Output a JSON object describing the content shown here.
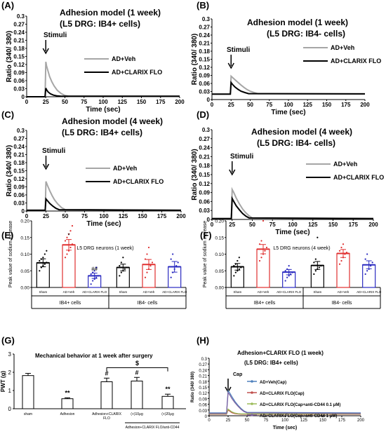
{
  "figure": {
    "panels": [
      {
        "id": "A",
        "letter": "(A)",
        "title": "Adhesion model (1 week)",
        "subtitle": "(L5 DRG: IB4+ cells)",
        "stimulus_label": "Stimuli",
        "ylabel": "Ratio (340/ 380)",
        "xlabel": "Time (sec)"
      },
      {
        "id": "B",
        "letter": "(B)",
        "title": "Adhesion model (1 week)",
        "subtitle": "(L5 DRG: IB4- cells)",
        "stimulus_label": "Stimuli",
        "ylabel": "Ratio (340/ 380)",
        "xlabel": "Time (sec)"
      },
      {
        "id": "C",
        "letter": "(C)",
        "title": "Adhesion model (4 week)",
        "subtitle": "(L5 DRG: IB4+ cells)",
        "stimulus_label": "Stimuli",
        "ylabel": "Ratio (340/ 380)",
        "xlabel": "Time (sec)"
      },
      {
        "id": "D",
        "letter": "(D)",
        "title": "Adhesion model (4 week)",
        "subtitle": "(L5 DRG: IB4- cells)",
        "stimulus_label": "Stimuli",
        "ylabel": "Ratio (340/ 380)",
        "xlabel": "Time (sec)"
      },
      {
        "id": "E",
        "letter": "(E)",
        "title": "L5 DRG neurons (1 week)",
        "ylabel": "Peak value of sodium increase",
        "group_labels": [
          "IB4+ cells",
          "IB4- cells"
        ]
      },
      {
        "id": "F",
        "letter": "(F)",
        "title": "L5 DRG neurons (4 week)",
        "ylabel": "Peak value of sodium increase",
        "group_labels": [
          "IB4+ cells",
          "IB4- cells"
        ]
      },
      {
        "id": "G",
        "letter": "(G)",
        "title": "Mechanical behavior at 1 week after surgery",
        "ylabel": "PWT (g)",
        "bracket_label": "$",
        "subgroup_label": "Adhesion+CLARIX FLO/anti-CD44"
      },
      {
        "id": "H",
        "letter": "(H)",
        "title": "Adhesion+CLARIX FLO (1 week)",
        "subtitle": "(L5 DRG: IB4+ cells)",
        "stimulus_label": "Cap",
        "ylabel": "Ratio (340/ 380)",
        "xlabel": "Time (sec)"
      }
    ]
  },
  "chart_data": [
    {
      "type": "line",
      "panel": "A",
      "title": "Adhesion model (1 week)",
      "subtitle": "(L5 DRG: IB4+ cells)",
      "xlabel": "Time (sec)",
      "ylabel": "Ratio (340/ 380)",
      "xlim": [
        0,
        200
      ],
      "ylim": [
        0,
        0.3
      ],
      "xticks": [
        0,
        25,
        50,
        75,
        100,
        125,
        150,
        175,
        200
      ],
      "yticks": [
        0,
        0.03,
        0.06,
        0.09,
        0.12,
        0.15,
        0.18,
        0.21,
        0.24,
        0.27,
        0.3
      ],
      "legend": "right",
      "series": [
        {
          "name": "AD+Veh",
          "color": "#a6a6a6",
          "x": [
            0,
            24,
            25,
            26,
            28,
            30,
            33,
            36,
            40,
            45,
            50,
            55,
            200
          ],
          "y": [
            0,
            0,
            0.13,
            0.115,
            0.095,
            0.075,
            0.055,
            0.04,
            0.024,
            0.012,
            0.005,
            0.002,
            0.002
          ]
        },
        {
          "name": "AD+CLARIX FLO",
          "color": "#000000",
          "x": [
            0,
            24,
            25,
            26,
            28,
            31,
            35,
            40,
            45,
            200
          ],
          "y": [
            0,
            0,
            0.032,
            0.026,
            0.018,
            0.011,
            0.006,
            0.003,
            0.002,
            0.002
          ]
        }
      ]
    },
    {
      "type": "line",
      "panel": "B",
      "title": "Adhesion model (1 week)",
      "subtitle": "(L5 DRG: IB4- cells)",
      "xlabel": "Time (sec)",
      "ylabel": "Ratio (340/ 380)",
      "xlim": [
        0,
        200
      ],
      "ylim": [
        0,
        0.3
      ],
      "xticks": [
        0,
        25,
        50,
        75,
        100,
        125,
        150,
        175,
        200
      ],
      "yticks": [
        0,
        0.03,
        0.06,
        0.09,
        0.12,
        0.15,
        0.18,
        0.21,
        0.24,
        0.27,
        0.3
      ],
      "legend": "right",
      "series": [
        {
          "name": "AD+Veh",
          "color": "#a6a6a6",
          "x": [
            0,
            24,
            25,
            27,
            30,
            34,
            38,
            42,
            46,
            50,
            55,
            60,
            200
          ],
          "y": [
            0.02,
            0.02,
            0.087,
            0.082,
            0.074,
            0.064,
            0.054,
            0.045,
            0.037,
            0.031,
            0.026,
            0.022,
            0.021
          ]
        },
        {
          "name": "AD+CLARIX FLO",
          "color": "#000000",
          "x": [
            0,
            24,
            25,
            27,
            30,
            34,
            38,
            43,
            48,
            200
          ],
          "y": [
            0.02,
            0.02,
            0.063,
            0.056,
            0.047,
            0.038,
            0.031,
            0.026,
            0.022,
            0.021
          ]
        }
      ]
    },
    {
      "type": "line",
      "panel": "C",
      "title": "Adhesion model (4 week)",
      "subtitle": "(L5 DRG: IB4+ cells)",
      "xlabel": "Time (sec)",
      "ylabel": "Ratio (340/ 380)",
      "xlim": [
        0,
        200
      ],
      "ylim": [
        0,
        0.3
      ],
      "xticks": [
        0,
        25,
        50,
        75,
        100,
        125,
        150,
        175,
        200
      ],
      "yticks": [
        0,
        0.03,
        0.06,
        0.09,
        0.12,
        0.15,
        0.18,
        0.21,
        0.24,
        0.27,
        0.3
      ],
      "legend": "right",
      "series": [
        {
          "name": "AD+Veh",
          "color": "#a6a6a6",
          "x": [
            0,
            24,
            25,
            27,
            30,
            33,
            36,
            40,
            45,
            50,
            200
          ],
          "y": [
            0.003,
            0.003,
            0.11,
            0.095,
            0.075,
            0.057,
            0.042,
            0.027,
            0.013,
            0.005,
            0.003
          ]
        },
        {
          "name": "AD+CLARIX FLO",
          "color": "#000000",
          "x": [
            0,
            24,
            25,
            27,
            30,
            34,
            38,
            42,
            200
          ],
          "y": [
            0.003,
            0.003,
            0.045,
            0.038,
            0.028,
            0.018,
            0.01,
            0.005,
            0.003
          ]
        }
      ]
    },
    {
      "type": "line",
      "panel": "D",
      "title": "Adhesion model (4 week)",
      "subtitle": "(L5 DRG: IB4- cells)",
      "xlabel": "Time (sec)",
      "ylabel": "Ratio (340/ 380)",
      "xlim": [
        0,
        200
      ],
      "ylim": [
        0,
        0.3
      ],
      "xticks": [
        0,
        25,
        50,
        75,
        100,
        125,
        150,
        175,
        200
      ],
      "yticks": [
        0,
        0.03,
        0.06,
        0.09,
        0.12,
        0.15,
        0.18,
        0.21,
        0.24,
        0.27,
        0.3
      ],
      "legend": "right",
      "series": [
        {
          "name": "AD+Veh",
          "color": "#a6a6a6",
          "x": [
            0,
            24,
            25,
            27,
            30,
            34,
            38,
            42,
            46,
            50,
            200
          ],
          "y": [
            0.003,
            0.003,
            0.1,
            0.09,
            0.072,
            0.052,
            0.035,
            0.022,
            0.012,
            0.005,
            0.003
          ]
        },
        {
          "name": "AD+CLARIX FLO",
          "color": "#000000",
          "x": [
            0,
            24,
            25,
            27,
            30,
            34,
            38,
            42,
            46,
            200
          ],
          "y": [
            0.003,
            0.003,
            0.07,
            0.06,
            0.046,
            0.032,
            0.02,
            0.011,
            0.005,
            0.003
          ]
        }
      ]
    },
    {
      "type": "bar",
      "panel": "E",
      "title": "L5 DRG neurons (1 week)",
      "ylabel": "Peak value of sodium increase",
      "ylim": [
        0,
        0.2
      ],
      "yticks": [
        0,
        0.05,
        0.1,
        0.15,
        0.2
      ],
      "categories": [
        "Sham",
        "AD+Veh",
        "AD+CLARIX FLO",
        "Sham",
        "AD+Veh",
        "AD+CLARIX FLO"
      ],
      "groups": [
        "IB4+ cells",
        "IB4- cells"
      ],
      "values": [
        0.074,
        0.128,
        0.035,
        0.06,
        0.069,
        0.062
      ],
      "errors": [
        0.012,
        0.016,
        0.008,
        0.01,
        0.015,
        0.016
      ],
      "bar_colors": [
        "#000000",
        "#e03030",
        "#2a2ac0",
        "#000000",
        "#e03030",
        "#2a2ac0"
      ],
      "annotations": [
        "",
        "*",
        "##",
        "",
        "",
        ""
      ],
      "points": [
        [
          0.05,
          0.06,
          0.065,
          0.07,
          0.075,
          0.08,
          0.085,
          0.09,
          0.1,
          0.11
        ],
        [
          0.09,
          0.1,
          0.11,
          0.12,
          0.13,
          0.14,
          0.15,
          0.16,
          0.17,
          0.185
        ],
        [
          0.01,
          0.02,
          0.025,
          0.03,
          0.035,
          0.04,
          0.045,
          0.05,
          0.06
        ],
        [
          0.035,
          0.045,
          0.05,
          0.055,
          0.06,
          0.065,
          0.075,
          0.09
        ],
        [
          0.03,
          0.045,
          0.055,
          0.065,
          0.075,
          0.085,
          0.1,
          0.12
        ],
        [
          0.03,
          0.045,
          0.055,
          0.065,
          0.075,
          0.085,
          0.1
        ]
      ]
    },
    {
      "type": "bar",
      "panel": "F",
      "title": "L5 DRG neurons (4 week)",
      "ylabel": "Peak value of sodium increase",
      "ylim": [
        0,
        0.2
      ],
      "yticks": [
        0,
        0.05,
        0.1,
        0.15,
        0.2
      ],
      "categories": [
        "Sham",
        "AD+Veh",
        "AD+CLARIX FLO",
        "Sham",
        "AD+Veh",
        "AD+CLARIX FLO"
      ],
      "groups": [
        "IB4+ cells",
        "IB4- cells"
      ],
      "values": [
        0.062,
        0.115,
        0.046,
        0.066,
        0.102,
        0.068
      ],
      "errors": [
        0.01,
        0.014,
        0.008,
        0.012,
        0.012,
        0.012
      ],
      "bar_colors": [
        "#000000",
        "#e03030",
        "#2a2ac0",
        "#000000",
        "#e03030",
        "#2a2ac0"
      ],
      "annotations": [
        "",
        "",
        "",
        "",
        "",
        ""
      ],
      "points": [
        [
          0.035,
          0.045,
          0.05,
          0.055,
          0.06,
          0.065,
          0.07,
          0.08,
          0.09
        ],
        [
          0.08,
          0.09,
          0.1,
          0.11,
          0.12,
          0.13,
          0.14,
          0.2
        ],
        [
          0.02,
          0.03,
          0.035,
          0.04,
          0.045,
          0.05,
          0.055,
          0.065
        ],
        [
          0.04,
          0.05,
          0.055,
          0.06,
          0.065,
          0.075,
          0.085,
          0.15
        ],
        [
          0.07,
          0.08,
          0.09,
          0.1,
          0.105,
          0.11,
          0.12,
          0.13
        ],
        [
          0.04,
          0.05,
          0.055,
          0.065,
          0.075,
          0.085,
          0.1
        ]
      ]
    },
    {
      "type": "bar",
      "panel": "G",
      "title": "Mechanical behavior at 1 week after surgery",
      "ylabel": "PWT (g)",
      "ylim": [
        0,
        3
      ],
      "yticks": [
        0,
        1,
        2,
        3
      ],
      "categories": [
        "sham",
        "Adhesion",
        "Adhesion+CLARIX FLO",
        "(+)10μg",
        "(+)20μg"
      ],
      "values": [
        1.82,
        0.55,
        1.48,
        1.52,
        0.68
      ],
      "errors": [
        0.12,
        0.05,
        0.2,
        0.2,
        0.12
      ],
      "annotations": [
        "",
        "**",
        "#",
        "#",
        "**"
      ]
    },
    {
      "type": "line",
      "panel": "H",
      "title": "Adhesion+CLARIX FLO (1 week)",
      "subtitle": "(L5 DRG: IB4+ cells)",
      "xlabel": "Time (sec)",
      "ylabel": "Ratio (340/ 380)",
      "xlim": [
        0,
        200
      ],
      "ylim": [
        0,
        0.3
      ],
      "xticks": [
        0,
        25,
        50,
        75,
        100,
        125,
        150,
        175,
        200
      ],
      "yticks": [
        0,
        0.03,
        0.06,
        0.09,
        0.12,
        0.15,
        0.18,
        0.21,
        0.24,
        0.27,
        0.3
      ],
      "legend": "right",
      "series": [
        {
          "name": "AD+Veh(Cap)",
          "color": "#4f81bd",
          "x": [
            0,
            23,
            25,
            27,
            30,
            34,
            38,
            42,
            46,
            50,
            200
          ],
          "y": [
            0.015,
            0.015,
            0.13,
            0.12,
            0.1,
            0.075,
            0.055,
            0.038,
            0.025,
            0.018,
            0.015
          ]
        },
        {
          "name": "AD+CLARIX FLO(Cap)",
          "color": "#c0504d",
          "x": [
            0,
            23,
            25,
            27,
            30,
            34,
            38,
            42,
            200
          ],
          "y": [
            0.008,
            0.008,
            0.03,
            0.024,
            0.016,
            0.011,
            0.009,
            0.008,
            0.008
          ]
        },
        {
          "name": "AD+CLARIX FLO(Cap+anti-CD44 0.1 μM)",
          "color": "#9bbb59",
          "x": [
            0,
            23,
            25,
            27,
            30,
            34,
            38,
            42,
            200
          ],
          "y": [
            0.01,
            0.01,
            0.035,
            0.029,
            0.02,
            0.014,
            0.011,
            0.01,
            0.01
          ]
        },
        {
          "name": "AD+CLARIX FLO(Cap+anti-CD44 1 μM)",
          "color": "#8064a2",
          "x": [
            0,
            23,
            25,
            27,
            30,
            34,
            38,
            42,
            46,
            50,
            200
          ],
          "y": [
            0.012,
            0.012,
            0.12,
            0.11,
            0.09,
            0.068,
            0.05,
            0.034,
            0.022,
            0.015,
            0.012
          ]
        }
      ]
    }
  ]
}
